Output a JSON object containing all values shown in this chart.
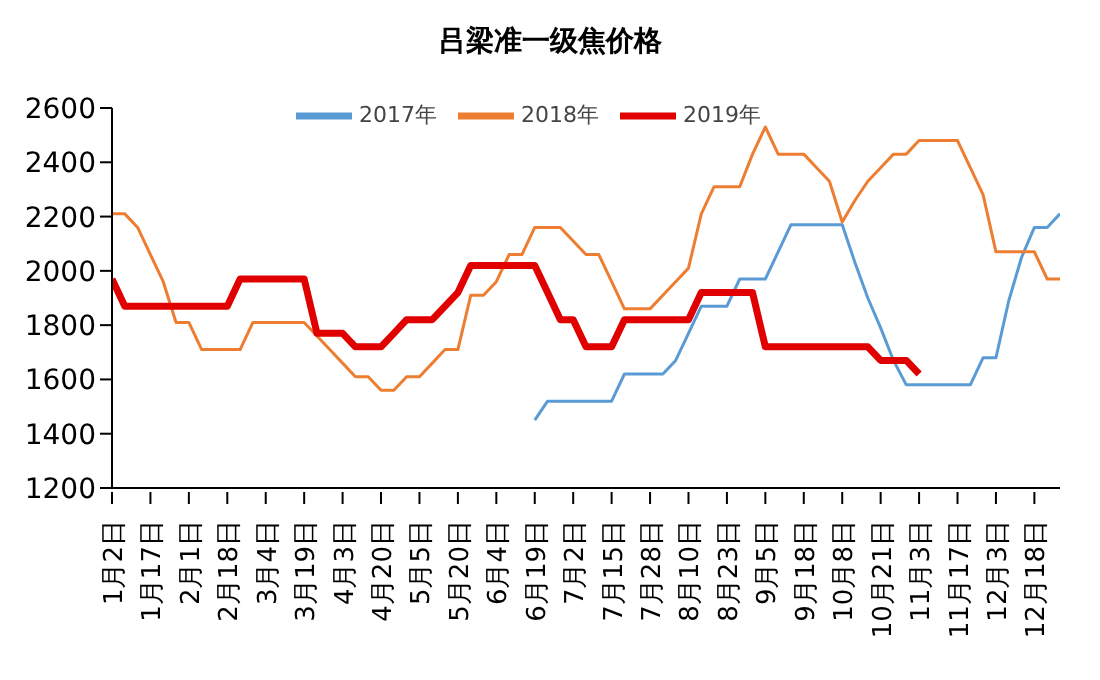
{
  "chart_data": {
    "type": "line",
    "title": "吕梁准一级焦价格",
    "categories": [
      "1月2日",
      null,
      null,
      "1月17日",
      null,
      null,
      "2月1日",
      null,
      null,
      "2月18日",
      null,
      null,
      "3月4日",
      null,
      null,
      "3月19日",
      null,
      null,
      "4月3日",
      null,
      null,
      "4月20日",
      null,
      null,
      "5月5日",
      null,
      null,
      "5月20日",
      null,
      null,
      "6月4日",
      null,
      null,
      "6月19日",
      null,
      null,
      "7月2日",
      null,
      null,
      "7月15日",
      null,
      null,
      "7月28日",
      null,
      null,
      "8月10日",
      null,
      null,
      "8月23日",
      null,
      null,
      "9月5日",
      null,
      null,
      "9月18日",
      null,
      null,
      "10月8日",
      null,
      null,
      "10月21日",
      null,
      null,
      "11月3日",
      null,
      null,
      "11月17日",
      null,
      null,
      "12月3日",
      null,
      null,
      "12月18日",
      null,
      null
    ],
    "series": [
      {
        "name": "2017年",
        "color": "#5b9bd5",
        "values": [
          null,
          null,
          null,
          null,
          null,
          null,
          null,
          null,
          null,
          null,
          null,
          null,
          null,
          null,
          null,
          null,
          null,
          null,
          null,
          null,
          null,
          null,
          null,
          null,
          null,
          null,
          null,
          null,
          null,
          null,
          null,
          null,
          null,
          1450,
          1520,
          1520,
          1520,
          1520,
          1520,
          1520,
          1620,
          1620,
          1620,
          1620,
          1670,
          1770,
          1870,
          1870,
          1870,
          1970,
          1970,
          1970,
          2070,
          2170,
          2170,
          2170,
          2170,
          2170,
          2030,
          1900,
          1790,
          1670,
          1580,
          1580,
          1580,
          1580,
          1580,
          1580,
          1680,
          1680,
          1890,
          2050,
          2160,
          2160,
          2210
        ]
      },
      {
        "name": "2018年",
        "color": "#ed7d31",
        "values": [
          2210,
          2210,
          2160,
          2060,
          1960,
          1810,
          1810,
          1710,
          1710,
          1710,
          1710,
          1810,
          1810,
          1810,
          1810,
          1810,
          1760,
          1710,
          1660,
          1610,
          1610,
          1560,
          1560,
          1610,
          1610,
          1660,
          1710,
          1710,
          1910,
          1910,
          1960,
          2060,
          2060,
          2160,
          2160,
          2160,
          2110,
          2060,
          2060,
          1960,
          1860,
          1860,
          1860,
          1910,
          1960,
          2010,
          2210,
          2310,
          2310,
          2310,
          2430,
          2530,
          2430,
          2430,
          2430,
          2380,
          2330,
          2180,
          2260,
          2330,
          2380,
          2430,
          2430,
          2480,
          2480,
          2480,
          2480,
          2380,
          2280,
          2070,
          2070,
          2070,
          2070,
          1970,
          1970
        ]
      },
      {
        "name": "2019年",
        "color": "#e00000",
        "values": [
          1970,
          1870,
          1870,
          1870,
          1870,
          1870,
          1870,
          1870,
          1870,
          1870,
          1970,
          1970,
          1970,
          1970,
          1970,
          1970,
          1770,
          1770,
          1770,
          1720,
          1720,
          1720,
          1770,
          1820,
          1820,
          1820,
          1870,
          1920,
          2020,
          2020,
          2020,
          2020,
          2020,
          2020,
          1920,
          1820,
          1820,
          1720,
          1720,
          1720,
          1820,
          1820,
          1820,
          1820,
          1820,
          1820,
          1920,
          1920,
          1920,
          1920,
          1920,
          1720,
          1720,
          1720,
          1720,
          1720,
          1720,
          1720,
          1720,
          1720,
          1670,
          1670,
          1670,
          1620,
          null,
          null,
          null,
          null,
          null,
          null,
          null,
          null,
          null,
          null,
          null
        ]
      }
    ],
    "ylim": [
      1200,
      2600
    ],
    "yticks": [
      1200,
      1400,
      1600,
      1800,
      2000,
      2200,
      2400,
      2600
    ],
    "grid": false,
    "legend": "top",
    "marker": "none",
    "line_style": "solid"
  }
}
